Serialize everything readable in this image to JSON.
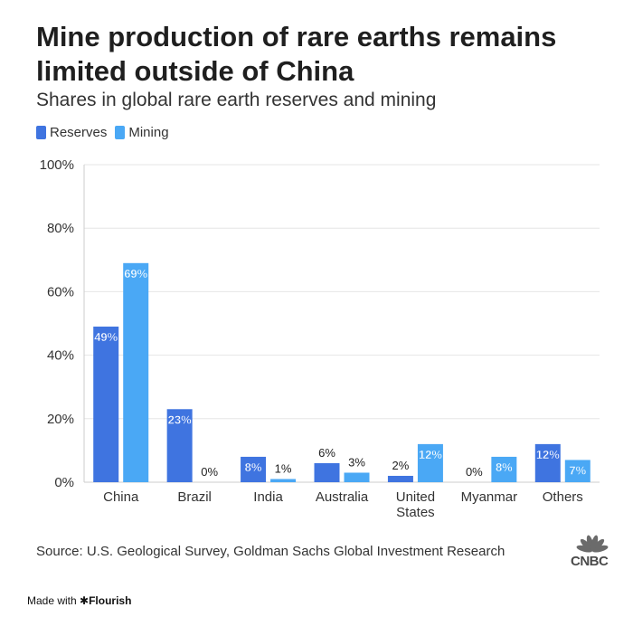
{
  "colors": {
    "reserves": "#3f74e0",
    "mining": "#4aa8f5",
    "grid": "#e6e6e6",
    "axis": "#cccccc",
    "text": "#333333"
  },
  "chart_data": {
    "type": "bar",
    "title": "Mine production of rare earths remains limited outside of China",
    "subtitle": "Shares in global rare earth reserves and mining",
    "categories": [
      [
        "China"
      ],
      [
        "Brazil"
      ],
      [
        "India"
      ],
      [
        "Australia"
      ],
      [
        "United",
        "States"
      ],
      [
        "Myanmar"
      ],
      [
        "Others"
      ]
    ],
    "series": [
      {
        "name": "Reserves",
        "values": [
          49,
          23,
          8,
          6,
          2,
          0,
          12
        ],
        "labels": [
          "49%",
          "23%",
          "8%",
          "6%",
          "2%",
          "0%",
          "12%"
        ]
      },
      {
        "name": "Mining",
        "values": [
          69,
          0,
          1,
          3,
          12,
          8,
          7
        ],
        "labels": [
          "69%",
          "0%",
          "1%",
          "3%",
          "12%",
          "8%",
          "7%"
        ]
      }
    ],
    "ylim": [
      0,
      100
    ],
    "yticks": [
      0,
      20,
      40,
      60,
      80,
      100
    ],
    "ytick_labels": [
      "0%",
      "20%",
      "40%",
      "60%",
      "80%",
      "100%"
    ],
    "grid": true,
    "legend": "top-left"
  },
  "source": "Source: U.S. Geological Survey, Goldman Sachs Global Investment Research",
  "footer": {
    "made_with": "Made with ",
    "brand": "✱Flourish"
  },
  "logo": {
    "text": "CNBC"
  }
}
